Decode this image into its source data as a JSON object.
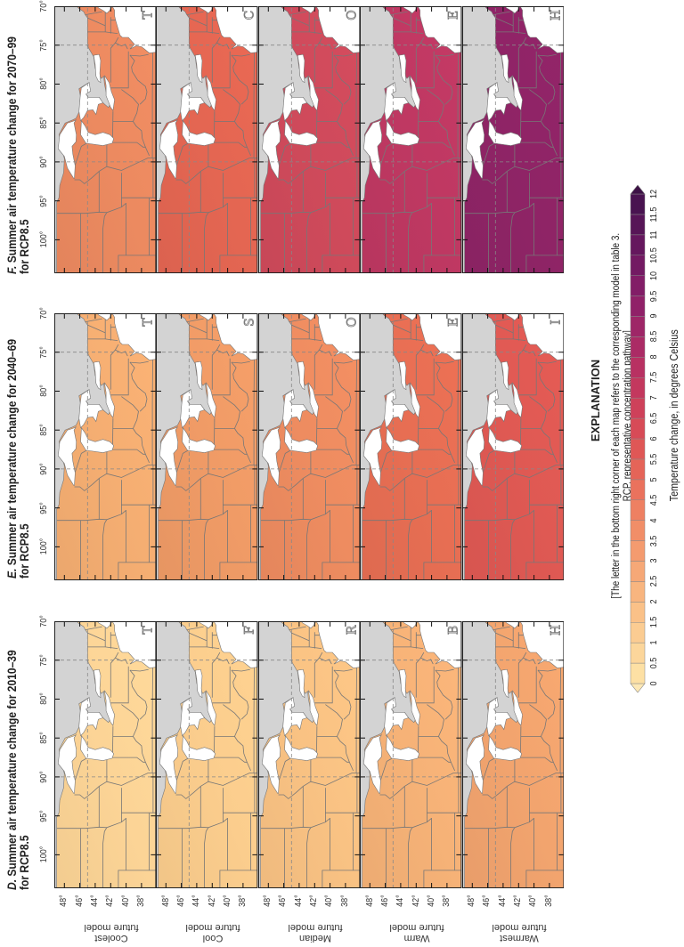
{
  "panels": [
    {
      "id": "D",
      "label": "D.",
      "title": "Summer air temperature change for 2010–39",
      "title_line2": "for RCP8.5",
      "maps": [
        {
          "letter": "T",
          "color": "#fcd496"
        },
        {
          "letter": "F",
          "color": "#fbcd8d"
        },
        {
          "letter": "R",
          "color": "#f9c283"
        },
        {
          "letter": "B",
          "color": "#f6b277"
        },
        {
          "letter": "H",
          "color": "#f2a46e"
        }
      ]
    },
    {
      "id": "E",
      "label": "E.",
      "title": "Summer air temperature change for 2040–69",
      "title_line2": "for RCP8.5",
      "maps": [
        {
          "letter": "T",
          "color": "#f5ae72"
        },
        {
          "letter": "S",
          "color": "#f09b66"
        },
        {
          "letter": "O",
          "color": "#ee8c60"
        },
        {
          "letter": "E",
          "color": "#e76e53"
        },
        {
          "letter": "I",
          "color": "#df5953"
        }
      ]
    },
    {
      "id": "F",
      "label": "F.",
      "title": "Summer air temperature change for 2070–99",
      "title_line2": "for RCP8.5",
      "maps": [
        {
          "letter": "T",
          "color": "#ec8a60"
        },
        {
          "letter": "C",
          "color": "#e46652"
        },
        {
          "letter": "O",
          "color": "#cf4a5b"
        },
        {
          "letter": "E",
          "color": "#bf3862"
        },
        {
          "letter": "H",
          "color": "#8f2466"
        }
      ]
    }
  ],
  "row_labels": [
    {
      "line1": "Coolest",
      "line2": "future model"
    },
    {
      "line1": "Cool",
      "line2": "future model"
    },
    {
      "line1": "Median",
      "line2": "future model"
    },
    {
      "line1": "Warm",
      "line2": "future model"
    },
    {
      "line1": "Warmest",
      "line2": "future model"
    }
  ],
  "longitude_labels": [
    "100°",
    "95°",
    "90°",
    "85°",
    "80°",
    "75°",
    "70°"
  ],
  "latitude_labels": [
    "48°",
    "46°",
    "44°",
    "42°",
    "40°",
    "38°"
  ],
  "map_colors": {
    "land_outside": "#d3d3d3",
    "water": "#ffffff",
    "boundaries": "#777777"
  },
  "explanation": {
    "heading": "EXPLANATION",
    "note_line1": "[The letter in the bottom right corner of each map refers to the corresponding model in table 3.",
    "note_line2": "RCP, representative concentration pathway]",
    "axis_title": "Temperature change, in degrees Celsius",
    "ticks": [
      "0",
      "0.5",
      "1",
      "1.5",
      "2",
      "2.5",
      "3",
      "3.5",
      "4",
      "4.5",
      "5",
      "5.5",
      "6",
      "6.5",
      "7",
      "7.5",
      "8",
      "8.5",
      "9",
      "9.5",
      "10",
      "10.5",
      "11",
      "11.5",
      "12"
    ],
    "bin_colors": [
      "#fde0a4",
      "#fcd69b",
      "#fbcc92",
      "#fac188",
      "#f8b57f",
      "#f6a877",
      "#f49b6f",
      "#f18e68",
      "#ee8062",
      "#ea725d",
      "#e56458",
      "#df5756",
      "#d74b57",
      "#ce415a",
      "#c3385e",
      "#b83162",
      "#ab2b65",
      "#9e2667",
      "#902168",
      "#821d67",
      "#731a63",
      "#65175e",
      "#571557",
      "#491350"
    ],
    "low_color": "#fde8b5",
    "high_color": "#3d1146"
  }
}
